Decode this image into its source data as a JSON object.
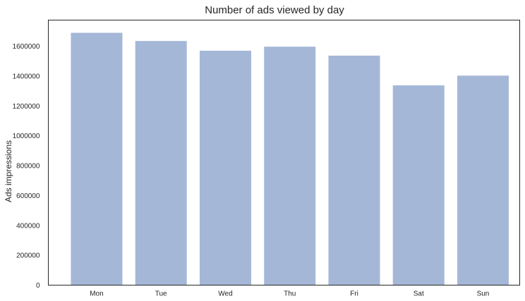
{
  "chart_data": {
    "type": "bar",
    "title": "Number of ads viewed by day",
    "xlabel": "",
    "ylabel": "Ads impressions",
    "categories": [
      "Mon",
      "Tue",
      "Wed",
      "Thu",
      "Fri",
      "Sat",
      "Sun"
    ],
    "values": [
      1690000,
      1635000,
      1570000,
      1597000,
      1537000,
      1338000,
      1403000
    ],
    "ylim": [
      0,
      1775000
    ],
    "yticks": [
      0,
      200000,
      400000,
      600000,
      800000,
      1000000,
      1200000,
      1400000,
      1600000
    ],
    "grid": false,
    "bar_color": "#a5b7d7",
    "axis_color": "#262626"
  }
}
